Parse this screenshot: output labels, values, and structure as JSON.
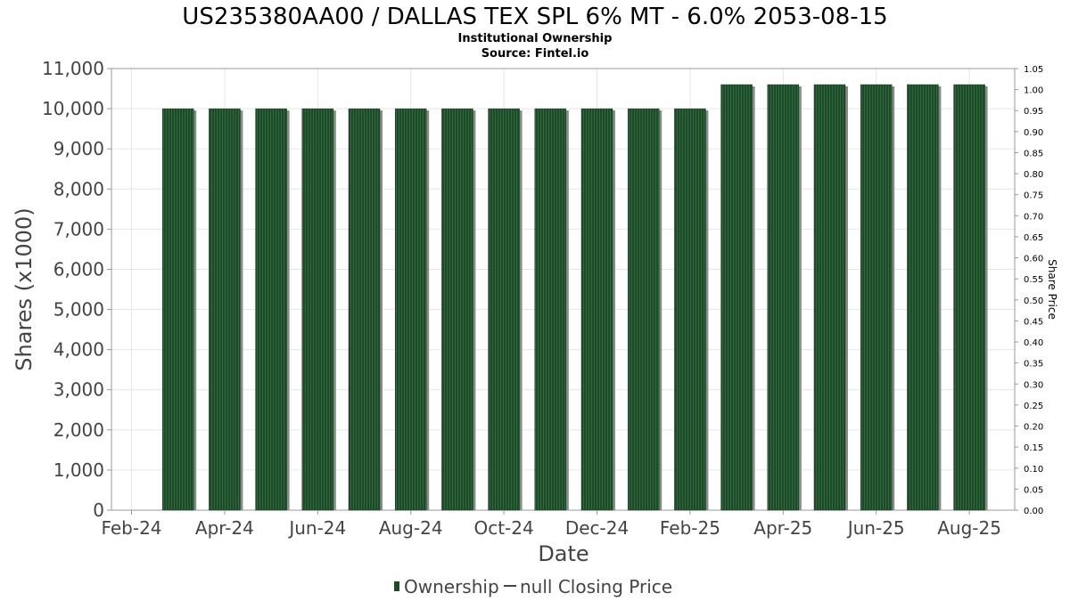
{
  "chart_data": {
    "type": "bar",
    "title": "US235380AA00 / DALLAS TEX SPL 6% MT - 6.0% 2053-08-15",
    "subtitle": "Institutional Ownership",
    "source": "Source: Fintel.io",
    "xlabel": "Date",
    "ylabel": "Shares (x1000)",
    "y2label": "Share Price",
    "ylim": [
      0,
      11000
    ],
    "y2lim": [
      0,
      1.05
    ],
    "yticks": [
      "0",
      "1,000",
      "2,000",
      "3,000",
      "4,000",
      "5,000",
      "6,000",
      "7,000",
      "8,000",
      "9,000",
      "10,000",
      "11,000"
    ],
    "y2ticks": [
      "0.00",
      "0.05",
      "0.10",
      "0.15",
      "0.20",
      "0.25",
      "0.30",
      "0.35",
      "0.40",
      "0.45",
      "0.50",
      "0.55",
      "0.60",
      "0.65",
      "0.70",
      "0.75",
      "0.80",
      "0.85",
      "0.90",
      "0.95",
      "1.00",
      "1.05"
    ],
    "xticks": [
      "Feb-24",
      "Apr-24",
      "Jun-24",
      "Aug-24",
      "Oct-24",
      "Dec-24",
      "Feb-25",
      "Apr-25",
      "Jun-25",
      "Aug-25"
    ],
    "x_months": [
      "Mar-24",
      "Apr-24",
      "May-24",
      "Jun-24",
      "Jul-24",
      "Aug-24",
      "Sep-24",
      "Oct-24",
      "Nov-24",
      "Dec-24",
      "Jan-25",
      "Feb-25",
      "Mar-25",
      "Apr-25",
      "May-25",
      "Jun-25",
      "Jul-25",
      "Aug-25"
    ],
    "series": [
      {
        "name": "Ownership",
        "type": "bar",
        "color": "#1f4a2a",
        "values": [
          10000,
          10000,
          10000,
          10000,
          10000,
          10000,
          10000,
          10000,
          10000,
          10000,
          10000,
          10000,
          10600,
          10600,
          10600,
          10600,
          10600,
          10600
        ]
      },
      {
        "name": "null Closing Price",
        "type": "line",
        "color": "#444444",
        "values": []
      }
    ],
    "grid": true,
    "legend": "bottom-center"
  }
}
